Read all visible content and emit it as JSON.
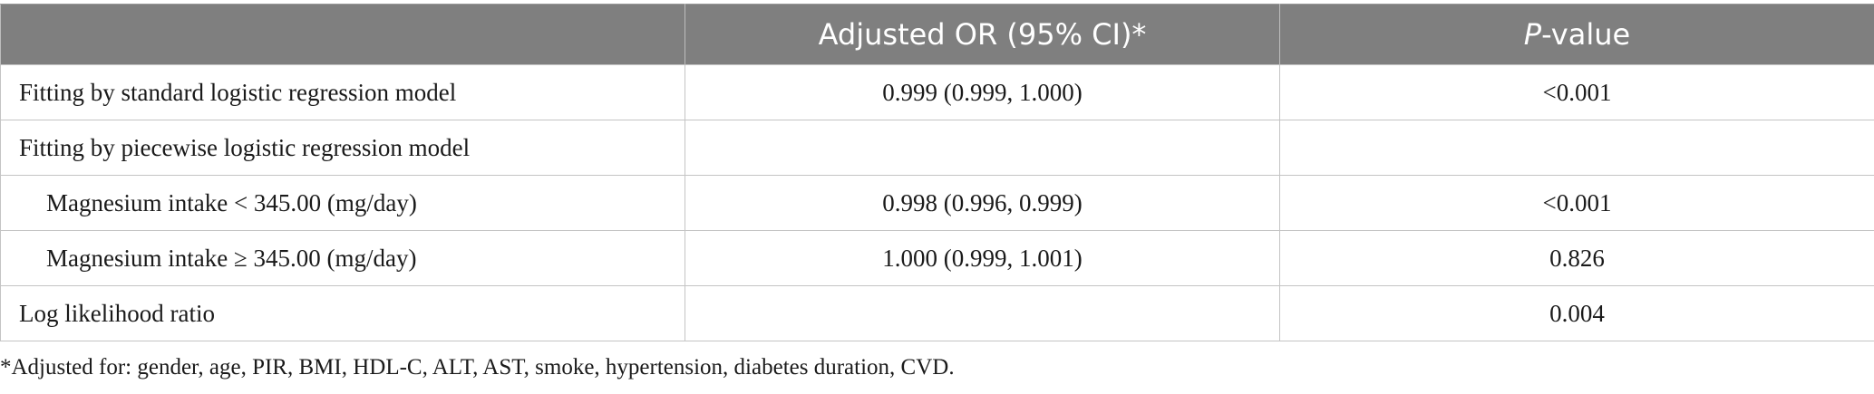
{
  "table": {
    "headers": {
      "col1": "",
      "col2": "Adjusted OR (95% CI)*",
      "col3_italic": "P",
      "col3_rest": "-value"
    },
    "rows": [
      {
        "label": "Fitting by standard logistic regression model",
        "or": "0.999 (0.999, 1.000)",
        "p": "<0.001"
      },
      {
        "label": "Fitting by piecewise logistic regression model",
        "or": "",
        "p": ""
      },
      {
        "label": "Magnesium intake < 345.00 (mg/day)",
        "or": "0.998 (0.996, 0.999)",
        "p": "<0.001"
      },
      {
        "label": "Magnesium intake ≥ 345.00 (mg/day)",
        "or": "1.000 (0.999, 1.001)",
        "p": "0.826"
      },
      {
        "label": "Log likelihood ratio",
        "or": "",
        "p": "0.004"
      }
    ]
  },
  "footnote": "*Adjusted for: gender, age, PIR, BMI, HDL-C, ALT, AST, smoke, hypertension, diabetes duration, CVD."
}
